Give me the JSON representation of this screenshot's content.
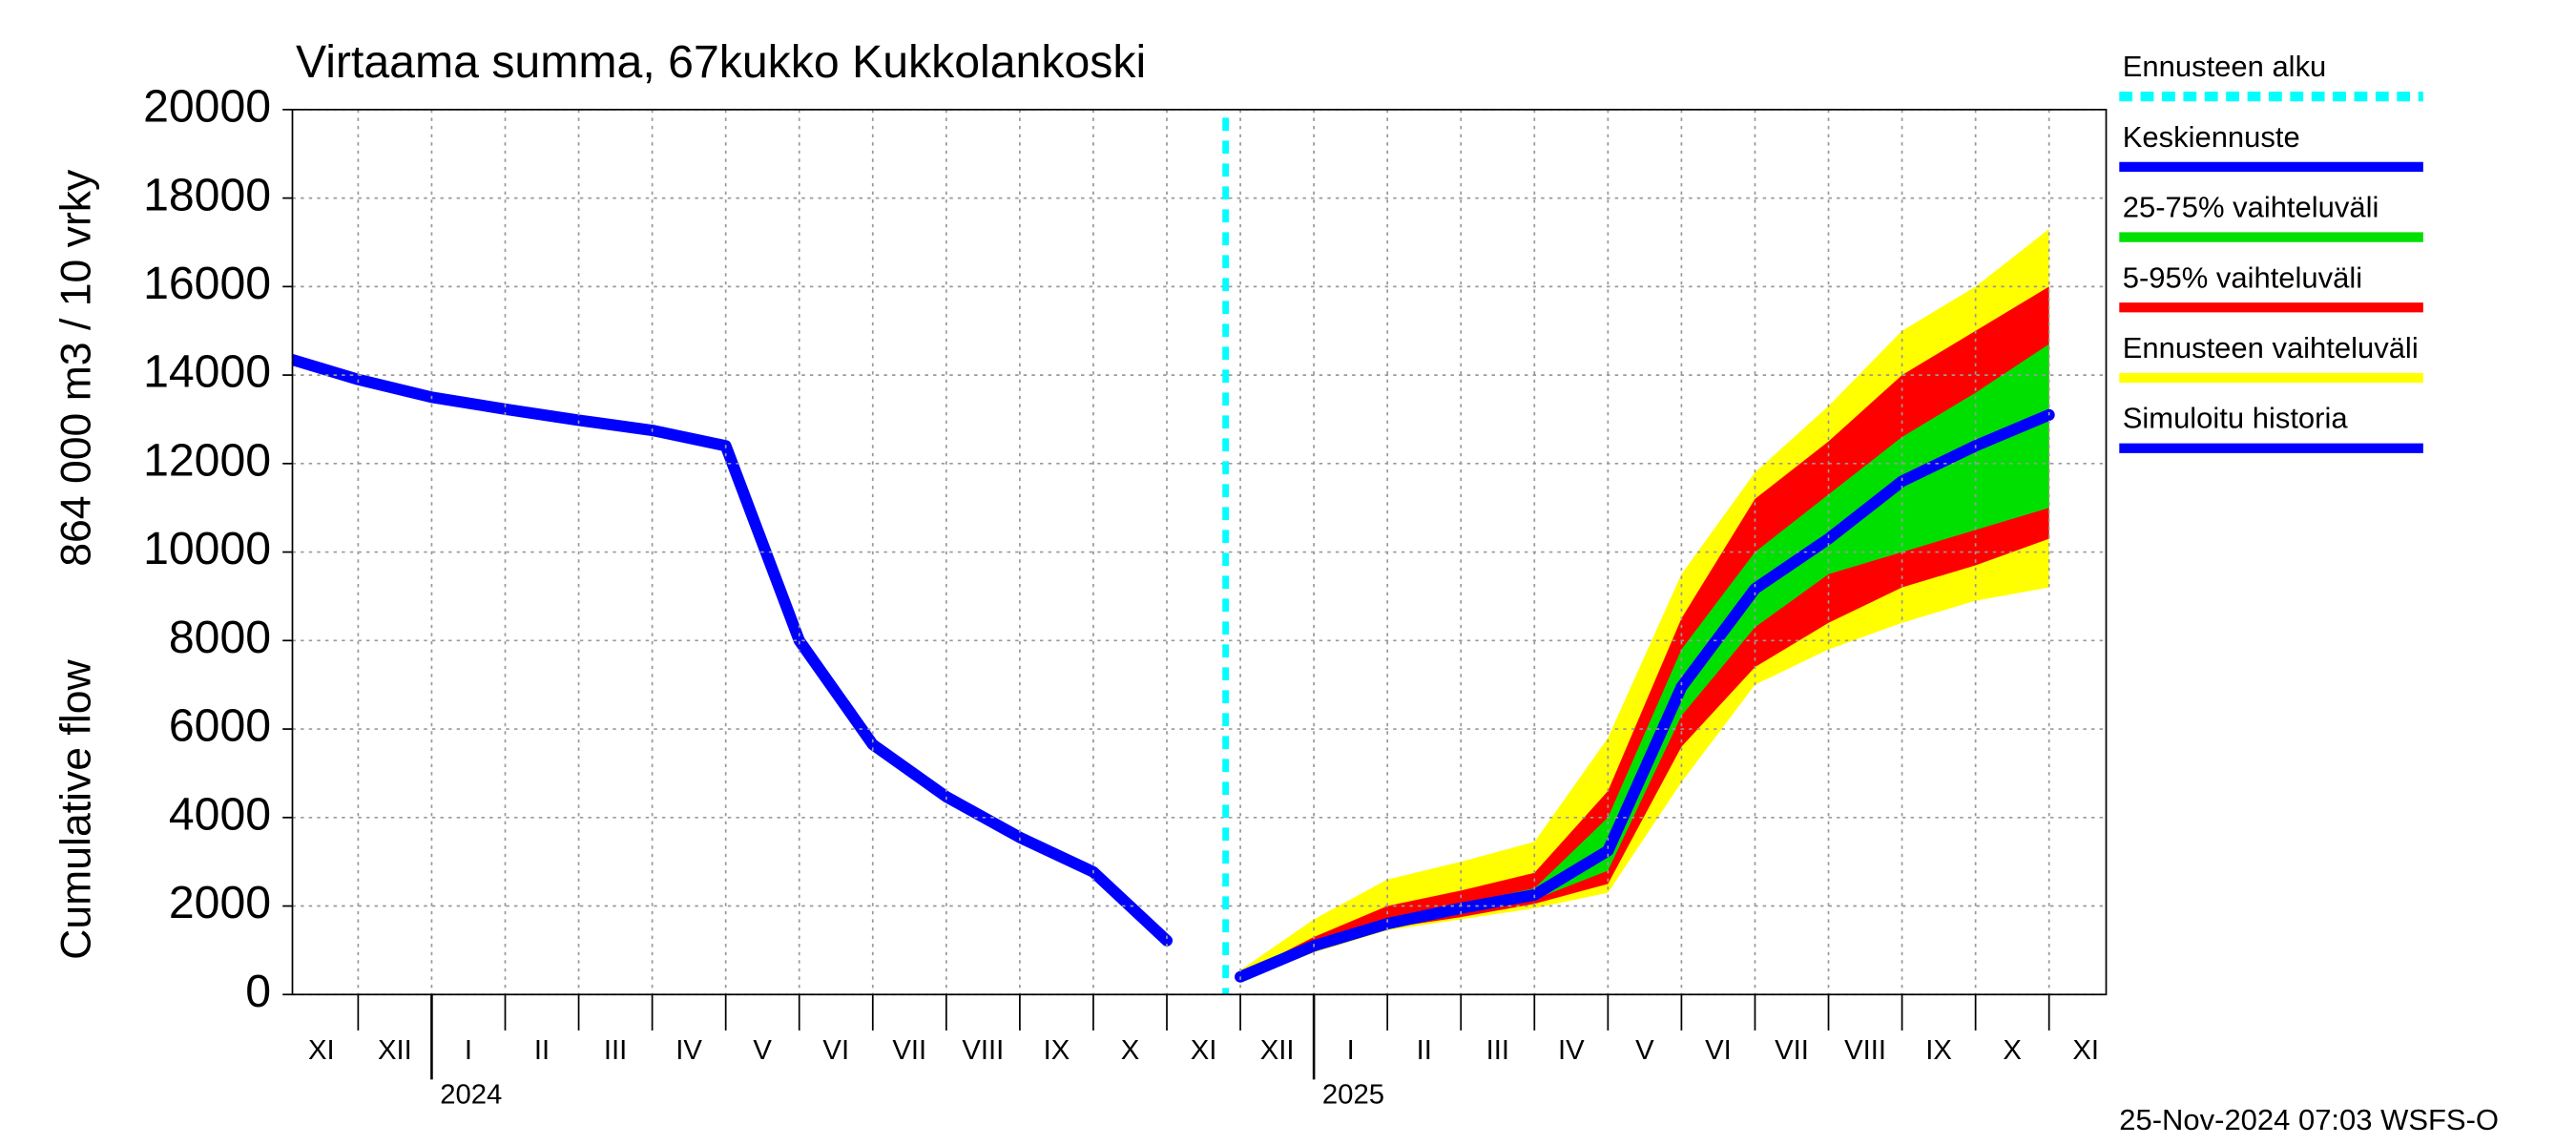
{
  "chart_data": {
    "type": "line",
    "title": "Virtaama summa, 67kukko Kukkolankoski",
    "ylabel_lines": [
      "Cumulative flow",
      "864 000 m3 / 10 vrky"
    ],
    "x": [
      "2023-11",
      "2023-12",
      "2024-01",
      "2024-02",
      "2024-03",
      "2024-04",
      "2024-05",
      "2024-06",
      "2024-07",
      "2024-08",
      "2024-09",
      "2024-10",
      "2024-11",
      "2024-12",
      "2025-01",
      "2025-02",
      "2025-03",
      "2025-04",
      "2025-05",
      "2025-06",
      "2025-07",
      "2025-08",
      "2025-09",
      "2025-10",
      "2025-11"
    ],
    "categories": [
      "XI",
      "XII",
      "I",
      "II",
      "III",
      "IV",
      "V",
      "VI",
      "VII",
      "VIII",
      "IX",
      "X",
      "XI",
      "XII",
      "I",
      "II",
      "III",
      "IV",
      "V",
      "VI",
      "VII",
      "VIII",
      "IX",
      "X",
      "XI"
    ],
    "year_labels": [
      {
        "x": "2024-01",
        "label": "2024"
      },
      {
        "x": "2025-01",
        "label": "2025"
      }
    ],
    "ylim": [
      0,
      20000
    ],
    "yticks": [
      0,
      2000,
      4000,
      6000,
      8000,
      10000,
      12000,
      14000,
      16000,
      18000,
      20000
    ],
    "grid": true,
    "forecast_start": {
      "name": "Ennusteen alku",
      "x": "2024-11-25",
      "color": "#00ffff"
    },
    "series": [
      {
        "name": "Simuloitu historia",
        "color": "#0000ff",
        "values": [
          14400,
          13900,
          13500,
          13230,
          12980,
          12750,
          12400,
          8000,
          5650,
          4470,
          3550,
          2770,
          1220,
          null,
          null,
          null,
          null,
          null,
          null,
          null,
          null,
          null,
          null,
          null,
          null
        ]
      },
      {
        "name": "Keskiennuste",
        "color": "#0000ff",
        "values": [
          null,
          null,
          null,
          null,
          null,
          null,
          null,
          null,
          null,
          null,
          null,
          null,
          null,
          400,
          1100,
          1600,
          1950,
          2250,
          3250,
          6950,
          9170,
          10300,
          11600,
          12400,
          13100
        ]
      }
    ],
    "bands": [
      {
        "name": "25-75% vaihteluväli",
        "color": "#00e000",
        "low": [
          null,
          null,
          null,
          null,
          null,
          null,
          null,
          null,
          null,
          null,
          null,
          null,
          null,
          380,
          1050,
          1550,
          1850,
          2150,
          2800,
          6300,
          8300,
          9500,
          10000,
          10500,
          11000
        ],
        "high": [
          null,
          null,
          null,
          null,
          null,
          null,
          null,
          null,
          null,
          null,
          null,
          null,
          null,
          420,
          1150,
          1700,
          2050,
          2400,
          4000,
          7800,
          10000,
          11300,
          12600,
          13600,
          14700
        ]
      },
      {
        "name": "5-95% vaihteluväli",
        "color": "#ff0000",
        "low": [
          null,
          null,
          null,
          null,
          null,
          null,
          null,
          null,
          null,
          null,
          null,
          null,
          null,
          350,
          1000,
          1500,
          1750,
          2050,
          2500,
          5600,
          7400,
          8400,
          9200,
          9700,
          10300
        ],
        "high": [
          null,
          null,
          null,
          null,
          null,
          null,
          null,
          null,
          null,
          null,
          null,
          null,
          null,
          450,
          1300,
          2000,
          2350,
          2750,
          4600,
          8500,
          11200,
          12500,
          14000,
          15000,
          16000
        ]
      },
      {
        "name": "Ennusteen vaihteluväli",
        "color": "#ffff00",
        "low": [
          null,
          null,
          null,
          null,
          null,
          null,
          null,
          null,
          null,
          null,
          null,
          null,
          null,
          300,
          950,
          1450,
          1700,
          1950,
          2300,
          4800,
          7000,
          7800,
          8400,
          8900,
          9200
        ],
        "high": [
          null,
          null,
          null,
          null,
          null,
          null,
          null,
          null,
          null,
          null,
          null,
          null,
          null,
          550,
          1700,
          2600,
          3000,
          3450,
          5800,
          9500,
          11800,
          13300,
          15000,
          16000,
          17300
        ]
      }
    ],
    "timestamp": "25-Nov-2024 07:03 WSFS-O"
  }
}
